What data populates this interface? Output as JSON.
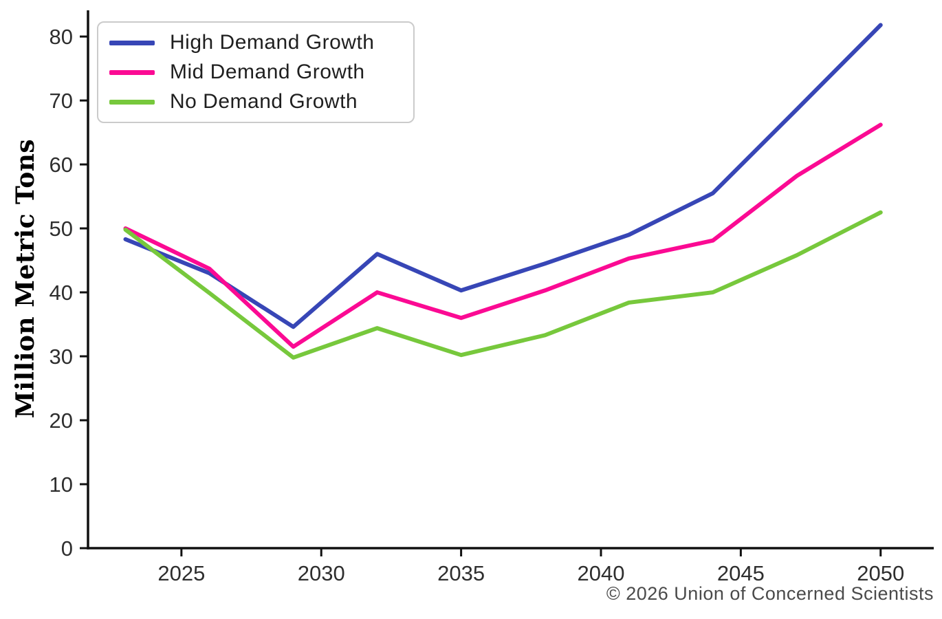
{
  "chart_data": {
    "type": "line",
    "title": "",
    "xlabel": "",
    "ylabel": "Million Metric Tons",
    "x": [
      2023,
      2026,
      2029,
      2032,
      2035,
      2038,
      2041,
      2044,
      2047,
      2050
    ],
    "series": [
      {
        "name": "High Demand Growth",
        "color": "#3746b6",
        "values": [
          48.3,
          43.0,
          34.6,
          46.0,
          40.3,
          44.5,
          49.0,
          55.5,
          68.6,
          81.8
        ]
      },
      {
        "name": "Mid Demand Growth",
        "color": "#fb0a93",
        "values": [
          50.0,
          43.7,
          31.5,
          40.0,
          36.0,
          40.3,
          45.3,
          48.1,
          58.2,
          66.2
        ]
      },
      {
        "name": "No Demand Growth",
        "color": "#77c83c",
        "values": [
          49.8,
          39.9,
          29.8,
          34.4,
          30.2,
          33.3,
          38.4,
          40.0,
          45.8,
          52.5
        ]
      }
    ],
    "x_ticks": [
      2025,
      2030,
      2035,
      2040,
      2045,
      2050
    ],
    "y_ticks": [
      0,
      10,
      20,
      30,
      40,
      50,
      60,
      70,
      80
    ],
    "xlim": [
      2021.66,
      2051.85
    ],
    "ylim": [
      0,
      84.1
    ],
    "grid": false,
    "legend_position": "upper-left"
  },
  "attribution": "© 2026 Union of Concerned Scientists",
  "colors": {
    "axis": "#111111",
    "tick_label": "#2e2e2e",
    "attribution": "#4a4a4a",
    "legend_border": "#cbcbcb"
  }
}
